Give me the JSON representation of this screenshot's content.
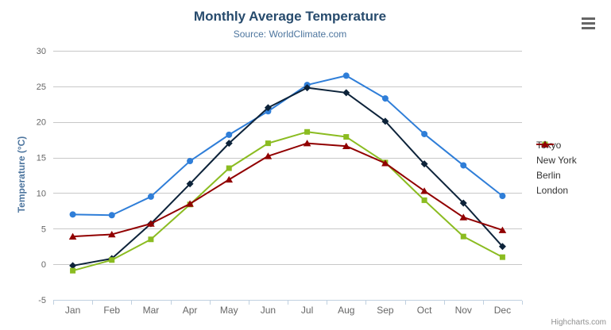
{
  "chart_data": {
    "type": "line",
    "title": "Monthly Average Temperature",
    "subtitle": "Source: WorldClimate.com",
    "categories": [
      "Jan",
      "Feb",
      "Mar",
      "Apr",
      "May",
      "Jun",
      "Jul",
      "Aug",
      "Sep",
      "Oct",
      "Nov",
      "Dec"
    ],
    "series": [
      {
        "name": "Tokyo",
        "color": "#2f7ed8",
        "marker": "circle",
        "values": [
          7.0,
          6.9,
          9.5,
          14.5,
          18.2,
          21.5,
          25.2,
          26.5,
          23.3,
          18.3,
          13.9,
          9.6
        ]
      },
      {
        "name": "New York",
        "color": "#0d233a",
        "marker": "diamond",
        "values": [
          -0.2,
          0.8,
          5.7,
          11.3,
          17.0,
          22.0,
          24.8,
          24.1,
          20.1,
          14.1,
          8.6,
          2.5
        ]
      },
      {
        "name": "Berlin",
        "color": "#8bbc21",
        "marker": "square",
        "values": [
          -0.9,
          0.6,
          3.5,
          8.4,
          13.5,
          17.0,
          18.6,
          17.9,
          14.3,
          9.0,
          3.9,
          1.0
        ]
      },
      {
        "name": "London",
        "color": "#910000",
        "marker": "triangle",
        "values": [
          3.9,
          4.2,
          5.7,
          8.5,
          11.9,
          15.2,
          17.0,
          16.6,
          14.2,
          10.3,
          6.6,
          4.8
        ]
      }
    ],
    "xlabel": "",
    "ylabel": "Temperature (°C)",
    "ylim": [
      -5,
      30
    ],
    "ytick_step": 5,
    "grid": true,
    "legend_position": "right"
  },
  "colors": {
    "title": "#274b6d",
    "subtitle": "#4d759e",
    "axis_label": "#666666",
    "axis_title": "#4d759e",
    "legend_text": "#333333",
    "gridline": "#c8c8c8",
    "axis_line": "#c0d0e0",
    "credits": "#909090",
    "menu_icon": "#666666"
  },
  "credits": {
    "label": "Highcharts.com"
  }
}
